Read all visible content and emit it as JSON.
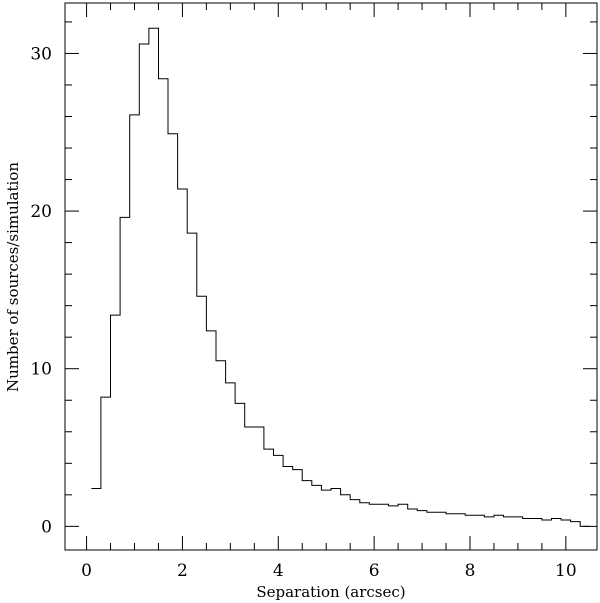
{
  "chart_data": {
    "type": "bar",
    "style": "step-histogram",
    "xlabel": "Separation (arcsec)",
    "ylabel": "Number of sources/simulation",
    "xlim": [
      -0.45,
      10.65
    ],
    "ylim": [
      -1.5,
      33.2
    ],
    "xticks": [
      0,
      2,
      4,
      6,
      8,
      10
    ],
    "yticks": [
      0,
      10,
      20,
      30
    ],
    "xtick_labels": [
      "0",
      "2",
      "4",
      "6",
      "8",
      "10"
    ],
    "ytick_labels": [
      "0",
      "10",
      "20",
      "30"
    ],
    "bin_width": 0.2,
    "bin_start": 0.1,
    "values": [
      2.4,
      8.2,
      13.4,
      19.6,
      26.1,
      30.6,
      31.6,
      28.4,
      24.9,
      21.4,
      18.6,
      14.6,
      12.4,
      10.5,
      9.1,
      7.8,
      6.3,
      6.3,
      4.9,
      4.5,
      3.8,
      3.6,
      2.9,
      2.6,
      2.3,
      2.4,
      2.0,
      1.7,
      1.5,
      1.4,
      1.4,
      1.3,
      1.4,
      1.1,
      1.0,
      0.9,
      0.9,
      0.8,
      0.8,
      0.7,
      0.7,
      0.6,
      0.7,
      0.6,
      0.6,
      0.5,
      0.5,
      0.4,
      0.5,
      0.4,
      0.3,
      0.0
    ],
    "grid": false,
    "line_color": "#000000"
  }
}
